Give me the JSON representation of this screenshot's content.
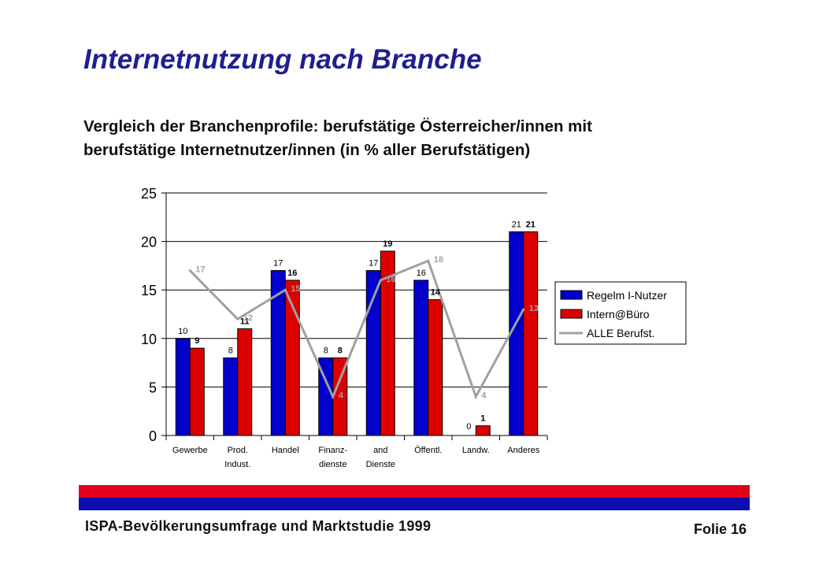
{
  "slide": {
    "title": "Internetnutzung nach Branche",
    "subtitle_line1": "Vergleich der Branchenprofile: berufstätige Österreicher/innen mit",
    "subtitle_line2": "berufstätige Internetnutzer/innen (in % aller Berufstätigen)",
    "footer_left": "ISPA-Bevölkerungsumfrage und Marktstudie 1999",
    "footer_right": "Folie 16"
  },
  "colors": {
    "series_blue": "#0000cc",
    "series_red": "#dd0000",
    "line_gray": "#a0a0a0",
    "band_red": "#e0001a",
    "band_blue": "#0a0fae",
    "title": "#1f1f8f"
  },
  "chart_data": {
    "type": "bar",
    "categories": [
      [
        "Gewerbe"
      ],
      [
        "Prod.",
        "Indust."
      ],
      [
        "Handel"
      ],
      [
        "Finanz-",
        "dienste"
      ],
      [
        "and",
        "Dienste"
      ],
      [
        "Öffentl."
      ],
      [
        "Landw."
      ],
      [
        "Anderes"
      ]
    ],
    "series": [
      {
        "name": "Regelm I-Nutzer",
        "kind": "bar",
        "values": [
          10,
          8,
          17,
          8,
          17,
          16,
          0,
          21
        ]
      },
      {
        "name": "Intern@Büro",
        "kind": "bar",
        "values": [
          9,
          11,
          16,
          8,
          19,
          14,
          1,
          21
        ]
      },
      {
        "name": "ALLE Berufst.",
        "kind": "line",
        "values": [
          17,
          12,
          15,
          4,
          16,
          18,
          4,
          13
        ]
      }
    ],
    "ylim": [
      0,
      25
    ],
    "yticks": [
      0,
      5,
      10,
      15,
      20,
      25
    ],
    "grid": true,
    "legend_position": "right"
  }
}
